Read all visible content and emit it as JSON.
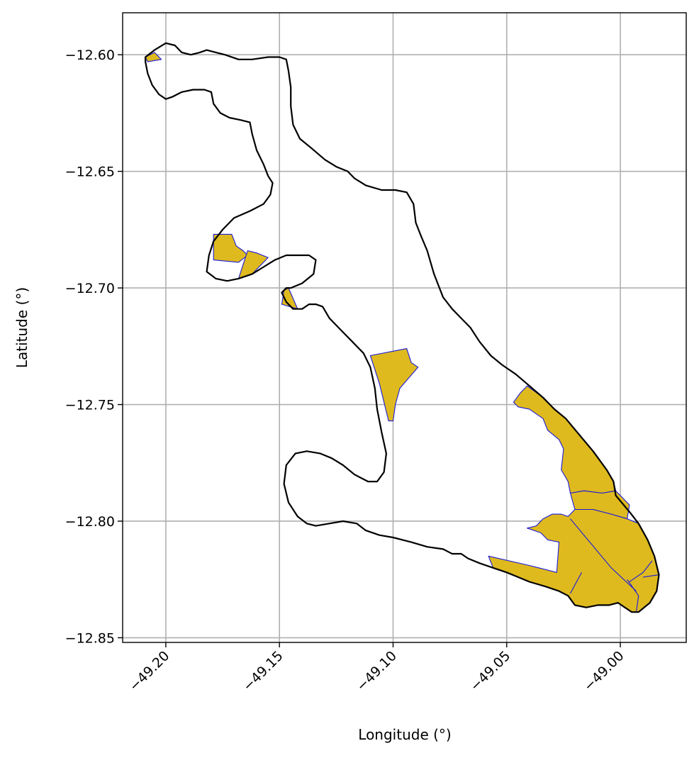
{
  "chart_data": {
    "type": "map",
    "title": "",
    "xlabel": "Longitude (°)",
    "ylabel": "Latitude (°)",
    "xlim": [
      -49.219,
      -48.971
    ],
    "ylim": [
      -12.852,
      -12.582
    ],
    "xticks": [
      {
        "value": -49.2,
        "label": "−49.20"
      },
      {
        "value": -49.15,
        "label": "−49.15"
      },
      {
        "value": -49.1,
        "label": "−49.10"
      },
      {
        "value": -49.05,
        "label": "−49.05"
      },
      {
        "value": -49.0,
        "label": "−49.00"
      }
    ],
    "yticks": [
      {
        "value": -12.6,
        "label": "−12.60"
      },
      {
        "value": -12.65,
        "label": "−12.65"
      },
      {
        "value": -12.7,
        "label": "−12.70"
      },
      {
        "value": -12.75,
        "label": "−12.75"
      },
      {
        "value": -12.8,
        "label": "−12.80"
      },
      {
        "value": -12.85,
        "label": "−12.85"
      }
    ],
    "grid": true,
    "colors": {
      "boundary": "#000000",
      "parcel_fill": "#deba1f",
      "parcel_edge": "#1a1adb",
      "grid": "#b0b0b0"
    },
    "boundary": [
      [
        -49.209,
        -12.601
      ],
      [
        -49.205,
        -12.598
      ],
      [
        -49.2,
        -12.595
      ],
      [
        -49.196,
        -12.596
      ],
      [
        -49.193,
        -12.599
      ],
      [
        -49.189,
        -12.6
      ],
      [
        -49.185,
        -12.599
      ],
      [
        -49.182,
        -12.598
      ],
      [
        -49.178,
        -12.599
      ],
      [
        -49.174,
        -12.6
      ],
      [
        -49.168,
        -12.602
      ],
      [
        -49.162,
        -12.602
      ],
      [
        -49.155,
        -12.601
      ],
      [
        -49.15,
        -12.601
      ],
      [
        -49.147,
        -12.602
      ],
      [
        -49.146,
        -12.607
      ],
      [
        -49.145,
        -12.614
      ],
      [
        -49.145,
        -12.622
      ],
      [
        -49.144,
        -12.63
      ],
      [
        -49.141,
        -12.636
      ],
      [
        -49.136,
        -12.64
      ],
      [
        -49.13,
        -12.645
      ],
      [
        -49.125,
        -12.648
      ],
      [
        -49.12,
        -12.65
      ],
      [
        -49.117,
        -12.653
      ],
      [
        -49.112,
        -12.656
      ],
      [
        -49.105,
        -12.658
      ],
      [
        -49.099,
        -12.658
      ],
      [
        -49.094,
        -12.659
      ],
      [
        -49.091,
        -12.664
      ],
      [
        -49.09,
        -12.672
      ],
      [
        -49.088,
        -12.677
      ],
      [
        -49.085,
        -12.684
      ],
      [
        -49.082,
        -12.694
      ],
      [
        -49.078,
        -12.704
      ],
      [
        -49.074,
        -12.709
      ],
      [
        -49.069,
        -12.714
      ],
      [
        -49.066,
        -12.717
      ],
      [
        -49.062,
        -12.723
      ],
      [
        -49.057,
        -12.729
      ],
      [
        -49.052,
        -12.733
      ],
      [
        -49.046,
        -12.737
      ],
      [
        -49.04,
        -12.742
      ],
      [
        -49.034,
        -12.747
      ],
      [
        -49.029,
        -12.752
      ],
      [
        -49.024,
        -12.756
      ],
      [
        -49.018,
        -12.763
      ],
      [
        -49.012,
        -12.77
      ],
      [
        -49.006,
        -12.778
      ],
      [
        -49.003,
        -12.783
      ],
      [
        -49.002,
        -12.789
      ],
      [
        -48.996,
        -12.796
      ],
      [
        -48.992,
        -12.801
      ],
      [
        -48.988,
        -12.808
      ],
      [
        -48.985,
        -12.815
      ],
      [
        -48.983,
        -12.823
      ],
      [
        -48.984,
        -12.83
      ],
      [
        -48.987,
        -12.835
      ],
      [
        -48.992,
        -12.839
      ],
      [
        -48.995,
        -12.839
      ],
      [
        -48.998,
        -12.837
      ],
      [
        -49.001,
        -12.835
      ],
      [
        -49.005,
        -12.836
      ],
      [
        -49.01,
        -12.836
      ],
      [
        -49.015,
        -12.837
      ],
      [
        -49.02,
        -12.836
      ],
      [
        -49.023,
        -12.832
      ],
      [
        -49.027,
        -12.83
      ],
      [
        -49.033,
        -12.828
      ],
      [
        -49.04,
        -12.826
      ],
      [
        -49.045,
        -12.824
      ],
      [
        -49.05,
        -12.822
      ],
      [
        -49.056,
        -12.82
      ],
      [
        -49.062,
        -12.818
      ],
      [
        -49.067,
        -12.816
      ],
      [
        -49.07,
        -12.814
      ],
      [
        -49.074,
        -12.814
      ],
      [
        -49.078,
        -12.812
      ],
      [
        -49.085,
        -12.811
      ],
      [
        -49.092,
        -12.809
      ],
      [
        -49.1,
        -12.807
      ],
      [
        -49.106,
        -12.806
      ],
      [
        -49.112,
        -12.804
      ],
      [
        -49.116,
        -12.801
      ],
      [
        -49.122,
        -12.8
      ],
      [
        -49.128,
        -12.801
      ],
      [
        -49.134,
        -12.802
      ],
      [
        -49.138,
        -12.801
      ],
      [
        -49.142,
        -12.798
      ],
      [
        -49.146,
        -12.792
      ],
      [
        -49.148,
        -12.784
      ],
      [
        -49.147,
        -12.776
      ],
      [
        -49.143,
        -12.771
      ],
      [
        -49.138,
        -12.77
      ],
      [
        -49.132,
        -12.771
      ],
      [
        -49.127,
        -12.773
      ],
      [
        -49.122,
        -12.776
      ],
      [
        -49.117,
        -12.78
      ],
      [
        -49.111,
        -12.783
      ],
      [
        -49.107,
        -12.783
      ],
      [
        -49.104,
        -12.779
      ],
      [
        -49.103,
        -12.771
      ],
      [
        -49.105,
        -12.762
      ],
      [
        -49.107,
        -12.752
      ],
      [
        -49.108,
        -12.743
      ],
      [
        -49.11,
        -12.734
      ],
      [
        -49.113,
        -12.728
      ],
      [
        -49.118,
        -12.723
      ],
      [
        -49.124,
        -12.717
      ],
      [
        -49.128,
        -12.713
      ],
      [
        -49.131,
        -12.708
      ],
      [
        -49.134,
        -12.707
      ],
      [
        -49.137,
        -12.707
      ],
      [
        -49.14,
        -12.709
      ],
      [
        -49.144,
        -12.709
      ],
      [
        -49.147,
        -12.706
      ],
      [
        -49.149,
        -12.702
      ],
      [
        -49.147,
        -12.7
      ],
      [
        -49.145,
        -12.7
      ],
      [
        -49.14,
        -12.698
      ],
      [
        -49.135,
        -12.694
      ],
      [
        -49.134,
        -12.688
      ],
      [
        -49.137,
        -12.686
      ],
      [
        -49.142,
        -12.686
      ],
      [
        -49.147,
        -12.686
      ],
      [
        -49.152,
        -12.688
      ],
      [
        -49.157,
        -12.691
      ],
      [
        -49.162,
        -12.694
      ],
      [
        -49.168,
        -12.696
      ],
      [
        -49.173,
        -12.697
      ],
      [
        -49.178,
        -12.696
      ],
      [
        -49.182,
        -12.693
      ],
      [
        -49.181,
        -12.686
      ],
      [
        -49.179,
        -12.68
      ],
      [
        -49.175,
        -12.675
      ],
      [
        -49.17,
        -12.67
      ],
      [
        -49.163,
        -12.667
      ],
      [
        -49.157,
        -12.664
      ],
      [
        -49.154,
        -12.66
      ],
      [
        -49.153,
        -12.655
      ],
      [
        -49.155,
        -12.652
      ],
      [
        -49.157,
        -12.647
      ],
      [
        -49.16,
        -12.641
      ],
      [
        -49.162,
        -12.634
      ],
      [
        -49.163,
        -12.629
      ],
      [
        -49.167,
        -12.628
      ],
      [
        -49.172,
        -12.627
      ],
      [
        -49.176,
        -12.625
      ],
      [
        -49.179,
        -12.621
      ],
      [
        -49.18,
        -12.616
      ],
      [
        -49.183,
        -12.615
      ],
      [
        -49.188,
        -12.615
      ],
      [
        -49.193,
        -12.616
      ],
      [
        -49.197,
        -12.618
      ],
      [
        -49.2,
        -12.619
      ],
      [
        -49.203,
        -12.617
      ],
      [
        -49.206,
        -12.613
      ],
      [
        -49.208,
        -12.608
      ],
      [
        -49.209,
        -12.603
      ]
    ],
    "parcels": [
      [
        [
          -49.209,
          -12.601
        ],
        [
          -49.205,
          -12.599
        ],
        [
          -49.202,
          -12.602
        ],
        [
          -49.208,
          -12.603
        ]
      ],
      [
        [
          -49.179,
          -12.677
        ],
        [
          -49.171,
          -12.677
        ],
        [
          -49.169,
          -12.682
        ],
        [
          -49.166,
          -12.684
        ],
        [
          -49.164,
          -12.686
        ],
        [
          -49.168,
          -12.689
        ],
        [
          -49.179,
          -12.688
        ]
      ],
      [
        [
          -49.164,
          -12.684
        ],
        [
          -49.16,
          -12.685
        ],
        [
          -49.155,
          -12.687
        ],
        [
          -49.162,
          -12.694
        ],
        [
          -49.168,
          -12.696
        ],
        [
          -49.166,
          -12.69
        ]
      ],
      [
        [
          -49.148,
          -12.701
        ],
        [
          -49.146,
          -12.7
        ],
        [
          -49.142,
          -12.709
        ],
        [
          -49.149,
          -12.707
        ]
      ],
      [
        [
          -49.11,
          -12.729
        ],
        [
          -49.094,
          -12.726
        ],
        [
          -49.092,
          -12.732
        ],
        [
          -49.089,
          -12.734
        ],
        [
          -49.097,
          -12.743
        ],
        [
          -49.099,
          -12.75
        ],
        [
          -49.1,
          -12.757
        ],
        [
          -49.102,
          -12.757
        ],
        [
          -49.106,
          -12.741
        ]
      ],
      [
        [
          -49.041,
          -12.742
        ],
        [
          -49.034,
          -12.747
        ],
        [
          -49.029,
          -12.752
        ],
        [
          -49.024,
          -12.756
        ],
        [
          -49.018,
          -12.763
        ],
        [
          -49.012,
          -12.77
        ],
        [
          -49.006,
          -12.778
        ],
        [
          -49.003,
          -12.783
        ],
        [
          -49.002,
          -12.787
        ],
        [
          -49.008,
          -12.788
        ],
        [
          -49.016,
          -12.787
        ],
        [
          -49.022,
          -12.788
        ],
        [
          -49.023,
          -12.783
        ],
        [
          -49.026,
          -12.778
        ],
        [
          -49.025,
          -12.769
        ],
        [
          -49.027,
          -12.765
        ],
        [
          -49.032,
          -12.761
        ],
        [
          -49.034,
          -12.756
        ],
        [
          -49.04,
          -12.752
        ],
        [
          -49.045,
          -12.751
        ],
        [
          -49.047,
          -12.749
        ],
        [
          -49.044,
          -12.745
        ]
      ],
      [
        [
          -49.022,
          -12.788
        ],
        [
          -49.016,
          -12.787
        ],
        [
          -49.008,
          -12.788
        ],
        [
          -49.002,
          -12.787
        ],
        [
          -48.996,
          -12.793
        ],
        [
          -48.997,
          -12.799
        ],
        [
          -49.004,
          -12.797
        ],
        [
          -49.012,
          -12.795
        ],
        [
          -49.02,
          -12.795
        ]
      ],
      [
        [
          -49.02,
          -12.795
        ],
        [
          -49.012,
          -12.795
        ],
        [
          -49.004,
          -12.797
        ],
        [
          -48.997,
          -12.799
        ],
        [
          -48.992,
          -12.801
        ],
        [
          -48.988,
          -12.808
        ],
        [
          -48.985,
          -12.815
        ],
        [
          -48.983,
          -12.823
        ],
        [
          -48.984,
          -12.83
        ],
        [
          -48.987,
          -12.835
        ],
        [
          -48.992,
          -12.839
        ],
        [
          -48.995,
          -12.839
        ],
        [
          -48.998,
          -12.837
        ],
        [
          -49.001,
          -12.835
        ],
        [
          -49.005,
          -12.836
        ],
        [
          -49.01,
          -12.836
        ],
        [
          -49.015,
          -12.837
        ],
        [
          -49.02,
          -12.836
        ],
        [
          -49.023,
          -12.832
        ],
        [
          -49.027,
          -12.83
        ],
        [
          -49.033,
          -12.828
        ],
        [
          -49.04,
          -12.826
        ],
        [
          -49.045,
          -12.824
        ],
        [
          -49.05,
          -12.822
        ],
        [
          -49.056,
          -12.82
        ],
        [
          -49.058,
          -12.815
        ],
        [
          -49.04,
          -12.819
        ],
        [
          -49.028,
          -12.822
        ],
        [
          -49.027,
          -12.809
        ],
        [
          -49.032,
          -12.808
        ],
        [
          -49.035,
          -12.805
        ],
        [
          -49.041,
          -12.803
        ],
        [
          -49.037,
          -12.802
        ],
        [
          -49.034,
          -12.799
        ],
        [
          -49.03,
          -12.797
        ],
        [
          -49.026,
          -12.797
        ],
        [
          -49.023,
          -12.798
        ]
      ]
    ],
    "internal_lines": [
      [
        [
          -49.022,
          -12.799
        ],
        [
          -49.004,
          -12.82
        ],
        [
          -48.993,
          -12.83
        ]
      ],
      [
        [
          -49.017,
          -12.822
        ],
        [
          -49.022,
          -12.831
        ]
      ],
      [
        [
          -48.997,
          -12.825
        ],
        [
          -48.992,
          -12.832
        ],
        [
          -48.993,
          -12.839
        ]
      ],
      [
        [
          -48.986,
          -12.817
        ],
        [
          -48.99,
          -12.822
        ],
        [
          -48.996,
          -12.826
        ]
      ],
      [
        [
          -48.983,
          -12.823
        ],
        [
          -48.99,
          -12.824
        ]
      ]
    ]
  }
}
